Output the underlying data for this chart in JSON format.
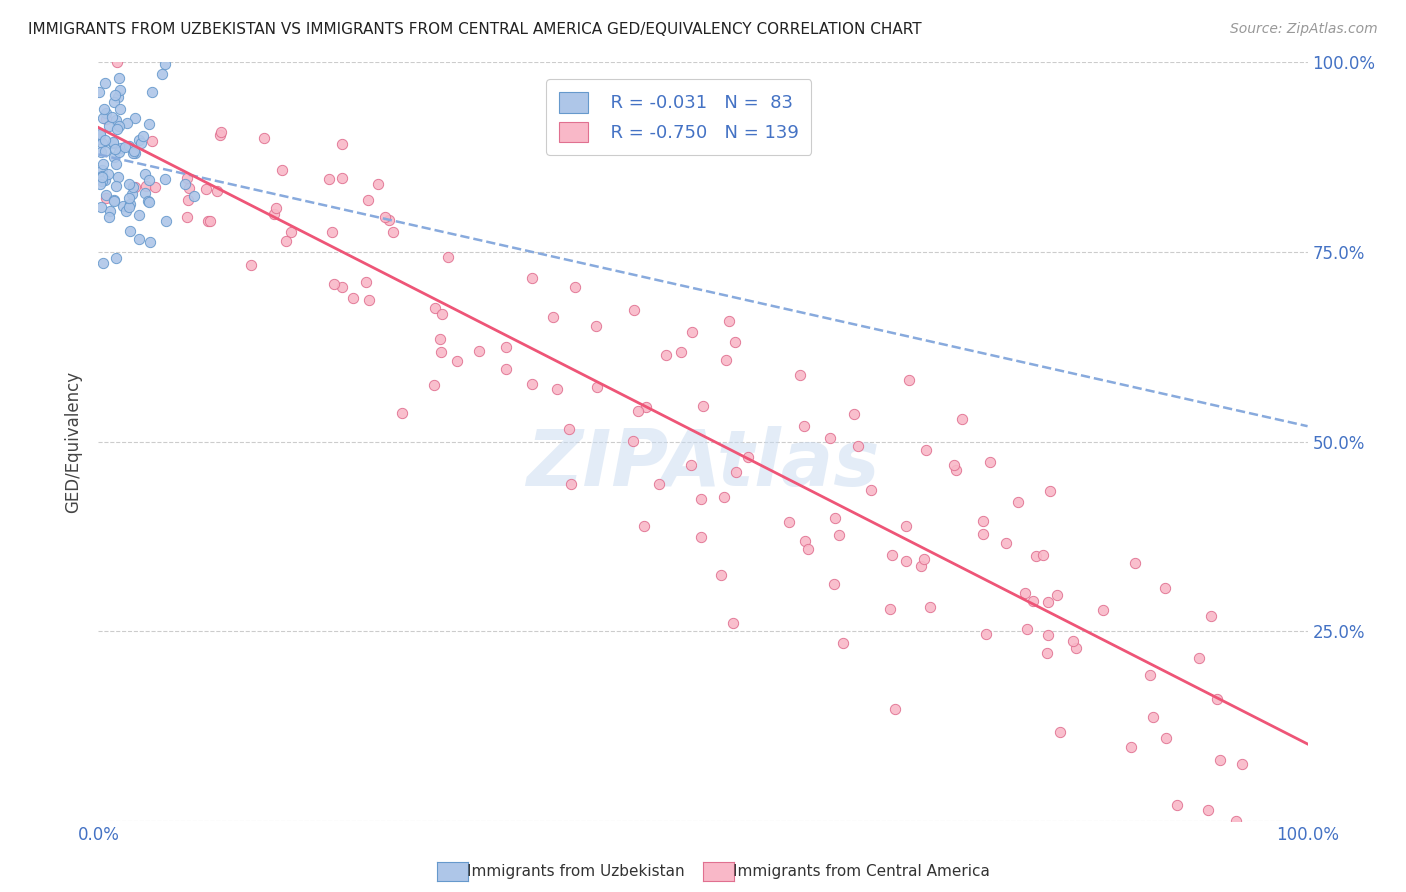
{
  "title": "IMMIGRANTS FROM UZBEKISTAN VS IMMIGRANTS FROM CENTRAL AMERICA GED/EQUIVALENCY CORRELATION CHART",
  "source": "Source: ZipAtlas.com",
  "ylabel": "GED/Equivalency",
  "legend_label_blue": "Immigrants from Uzbekistan",
  "legend_label_pink": "Immigrants from Central America",
  "r_blue": -0.031,
  "n_blue": 83,
  "r_pink": -0.75,
  "n_pink": 139,
  "blue_scatter_color": "#aec6e8",
  "blue_edge_color": "#6699cc",
  "pink_scatter_color": "#f9b8c8",
  "pink_edge_color": "#e07090",
  "blue_line_color": "#88aadd",
  "pink_line_color": "#ee5577",
  "tick_color": "#4472c4",
  "text_color": "#4472c4",
  "grid_color": "#cccccc",
  "background_color": "#ffffff",
  "xlim": [
    0,
    1
  ],
  "ylim": [
    0,
    1
  ],
  "watermark_color": "#c8daf0",
  "watermark_alpha": 0.5,
  "seed_blue": 12,
  "seed_pink": 99
}
